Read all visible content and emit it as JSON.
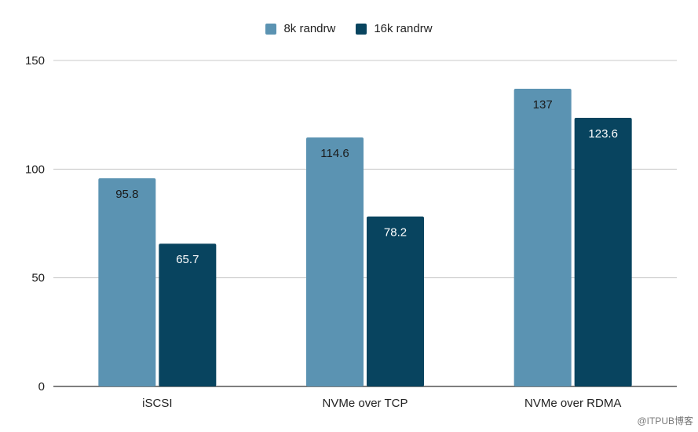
{
  "chart_data": {
    "type": "bar",
    "categories": [
      "iSCSI",
      "NVMe over TCP",
      "NVMe over RDMA"
    ],
    "series": [
      {
        "name": "8k randrw",
        "values": [
          95.8,
          114.6,
          137
        ],
        "labels": [
          "95.8",
          "114.6",
          "137"
        ],
        "color": "#5b93b2"
      },
      {
        "name": "16k randrw",
        "values": [
          65.7,
          78.2,
          123.6
        ],
        "labels": [
          "65.7",
          "78.2",
          "123.6"
        ],
        "color": "#08445f"
      }
    ],
    "title": "",
    "xlabel": "",
    "ylabel": "",
    "ylim": [
      0,
      150
    ],
    "yticks": [
      0,
      50,
      100,
      150
    ],
    "grid": true,
    "legend_position": "top-center"
  },
  "watermark": "@ITPUB博客"
}
